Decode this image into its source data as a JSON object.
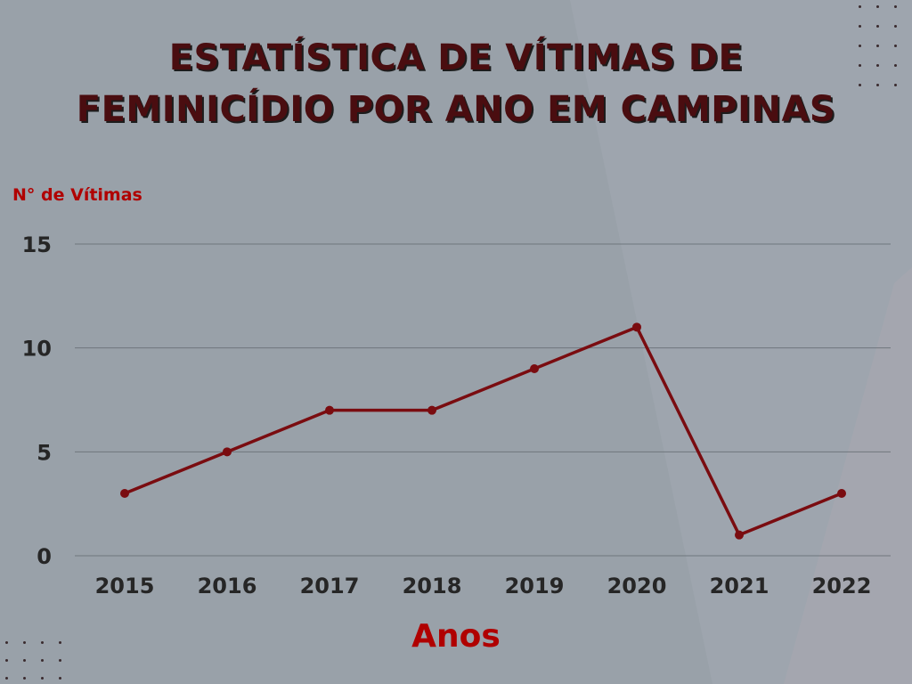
{
  "chart_data": {
    "type": "line",
    "title_lines": [
      "ESTATÍSTICA DE VÍTIMAS DE",
      "FEMINICÍDIO POR ANO EM CAMPINAS"
    ],
    "xlabel": "Anos",
    "ylabel": "N° de Vítimas",
    "categories": [
      "2015",
      "2016",
      "2017",
      "2018",
      "2019",
      "2020",
      "2021",
      "2022"
    ],
    "series": [
      {
        "values": [
          3,
          5,
          7,
          7,
          9,
          11,
          1,
          3
        ]
      }
    ],
    "yticks": [
      "0",
      "5",
      "10",
      "15"
    ],
    "ylim": [
      0,
      15
    ],
    "grid": true,
    "line_color": "#7a0c10",
    "grid_color": "#6f767d",
    "label_color": "#b00000",
    "title_color": "#4a0d10"
  }
}
